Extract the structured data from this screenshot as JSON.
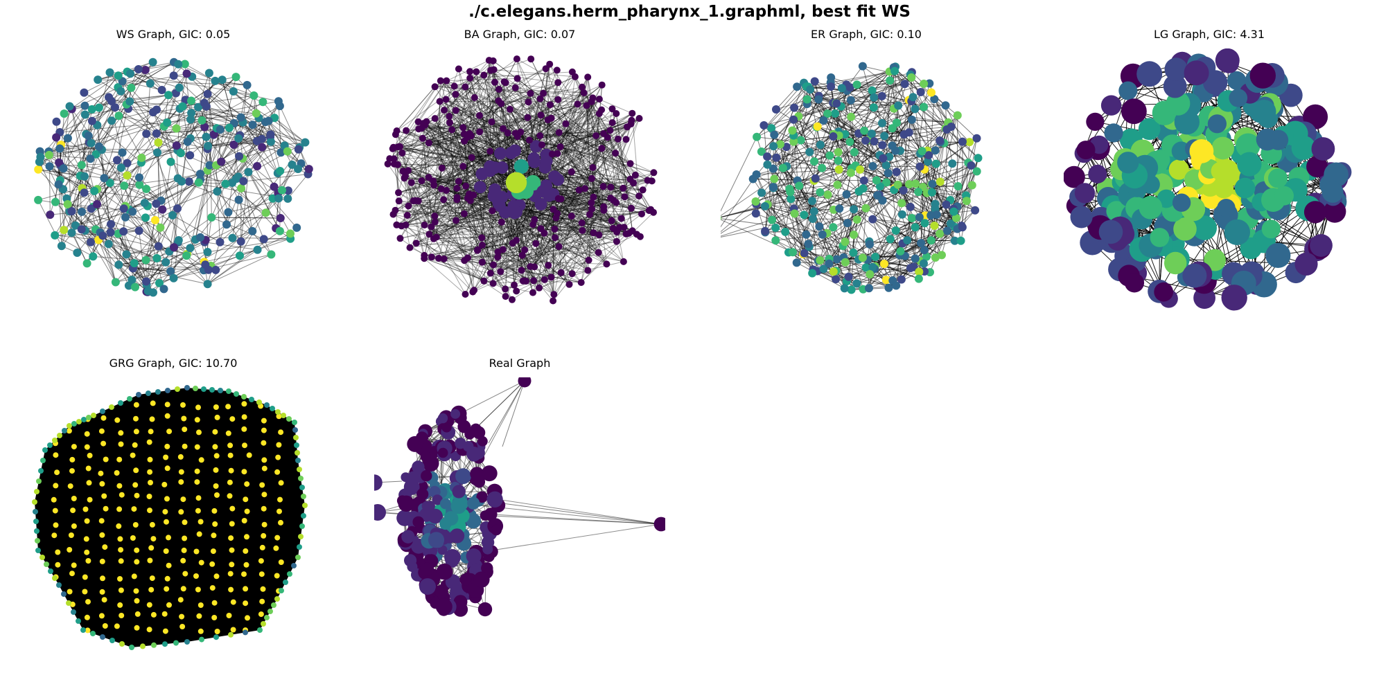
{
  "figure": {
    "title": "./c.elegans.herm_pharynx_1.graphml, best fit WS"
  },
  "panels": [
    {
      "title": "WS Graph, GIC: 0.05"
    },
    {
      "title": "BA Graph, GIC: 0.07"
    },
    {
      "title": "ER Graph, GIC: 0.10"
    },
    {
      "title": "LG Graph, GIC: 4.31"
    },
    {
      "title": "GRG Graph, GIC: 10.70"
    },
    {
      "title": "Real Graph"
    }
  ],
  "colors": {
    "viridis": [
      "#440154",
      "#482878",
      "#3e4989",
      "#31688e",
      "#26828e",
      "#1f9e89",
      "#35b779",
      "#6ece58",
      "#b5de2b",
      "#fde725"
    ],
    "edge": "#000000",
    "background": "#ffffff"
  }
}
